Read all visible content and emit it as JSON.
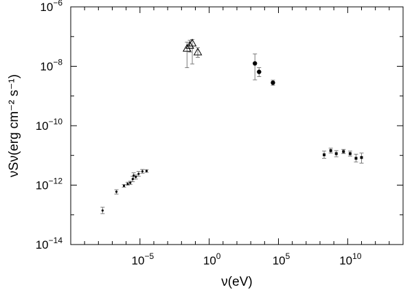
{
  "chart_data": {
    "type": "scatter",
    "title": "",
    "xlabel": "ν(eV)",
    "ylabel": "νSν(erg cm⁻² s⁻¹)",
    "x_scale": "log",
    "y_scale": "log",
    "xlim": [
      1e-10,
      100000000000000.0
    ],
    "ylim": [
      1e-14,
      1e-06
    ],
    "x_ticks": [
      {
        "value": 1e-05,
        "base": "10",
        "exp": "−5"
      },
      {
        "value": 1,
        "base": "10",
        "exp": "0"
      },
      {
        "value": 100000.0,
        "base": "10",
        "exp": "5"
      },
      {
        "value": 10000000000.0,
        "base": "10",
        "exp": "10"
      }
    ],
    "y_ticks": [
      {
        "value": 1e-14,
        "base": "10",
        "exp": "−14"
      },
      {
        "value": 1e-12,
        "base": "10",
        "exp": "−12"
      },
      {
        "value": 1e-10,
        "base": "10",
        "exp": "−10"
      },
      {
        "value": 1e-08,
        "base": "10",
        "exp": "−8"
      },
      {
        "value": 1e-06,
        "base": "10",
        "exp": "−6"
      }
    ],
    "grid": false,
    "colors": {
      "marker": "#000000",
      "errorbar": "#7a7a7a",
      "axis": "#000000"
    },
    "series": [
      {
        "marker": "small-dot",
        "points": [
          {
            "x": 2e-08,
            "y": 1.4e-13,
            "ylo": 1.1e-13,
            "yhi": 1.8e-13
          },
          {
            "x": 2e-07,
            "y": 6e-13,
            "ylo": 5e-13,
            "yhi": 7e-13
          },
          {
            "x": 7e-07,
            "y": 9.5e-13,
            "ylo": 8.5e-13,
            "yhi": 1.05e-12
          },
          {
            "x": 1.3e-06,
            "y": 1.1e-12,
            "ylo": 1e-12,
            "yhi": 1.25e-12
          },
          {
            "x": 2e-06,
            "y": 1.2e-12,
            "ylo": 1.05e-12,
            "yhi": 1.35e-12
          },
          {
            "x": 3e-06,
            "y": 1.6e-12,
            "ylo": 1.3e-12,
            "yhi": 2e-12
          },
          {
            "x": 3.5e-06,
            "y": 2.1e-12,
            "ylo": 1.6e-12,
            "yhi": 2.6e-12
          },
          {
            "x": 5e-06,
            "y": 1.9e-12,
            "ylo": 1.6e-12,
            "yhi": 2.2e-12
          },
          {
            "x": 8e-06,
            "y": 2.4e-12,
            "ylo": 2e-12,
            "yhi": 2.9e-12
          },
          {
            "x": 1.5e-05,
            "y": 2.9e-12,
            "ylo": 2.5e-12,
            "yhi": 3.4e-12
          },
          {
            "x": 3e-05,
            "y": 3e-12,
            "ylo": 2.7e-12,
            "yhi": 3.3e-12
          }
        ]
      },
      {
        "marker": "open-triangle",
        "points": [
          {
            "x": 0.025,
            "y": 4e-08,
            "ylo": 9e-09,
            "yhi": 6.5e-08
          },
          {
            "x": 0.04,
            "y": 5e-08,
            "ylo": 3e-08,
            "yhi": 7.5e-08
          },
          {
            "x": 0.06,
            "y": 6e-08,
            "ylo": 1.2e-08,
            "yhi": 8e-08
          },
          {
            "x": 0.15,
            "y": 3e-08,
            "ylo": 2e-08,
            "yhi": 4.2e-08
          }
        ]
      },
      {
        "marker": "filled-circle",
        "points": [
          {
            "x": 2000,
            "y": 1.25e-08,
            "ylo": 3.5e-09,
            "yhi": 2.6e-08
          },
          {
            "x": 4000,
            "y": 6.5e-09,
            "ylo": 4.5e-09,
            "yhi": 9e-09
          },
          {
            "x": 40000,
            "y": 2.8e-09,
            "ylo": 2.3e-09,
            "yhi": 3.4e-09
          }
        ]
      },
      {
        "marker": "filled-square",
        "points": [
          {
            "x": 200000000.0,
            "y": 1.05e-11,
            "ylo": 8e-12,
            "yhi": 1.4e-11
          },
          {
            "x": 600000000.0,
            "y": 1.45e-11,
            "ylo": 1.2e-11,
            "yhi": 1.75e-11
          },
          {
            "x": 1500000000.0,
            "y": 1.15e-11,
            "ylo": 9e-12,
            "yhi": 1.45e-11
          },
          {
            "x": 5000000000.0,
            "y": 1.35e-11,
            "ylo": 1.15e-11,
            "yhi": 1.6e-11
          },
          {
            "x": 15000000000.0,
            "y": 1.15e-11,
            "ylo": 9.5e-12,
            "yhi": 1.4e-11
          },
          {
            "x": 40000000000.0,
            "y": 8e-12,
            "ylo": 6e-12,
            "yhi": 1.1e-11
          },
          {
            "x": 100000000000.0,
            "y": 8.5e-12,
            "ylo": 5.5e-12,
            "yhi": 1.2e-11
          }
        ]
      }
    ]
  }
}
